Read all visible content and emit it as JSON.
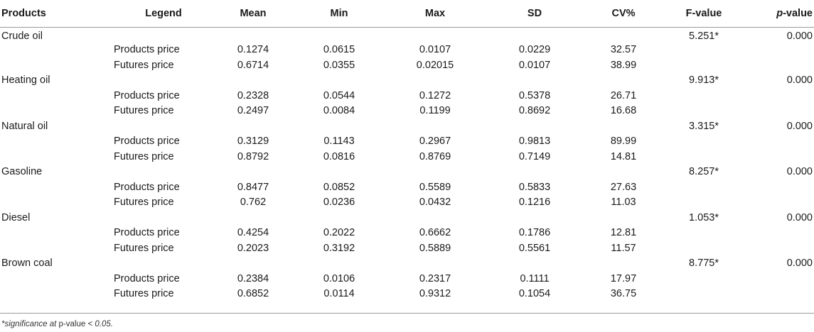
{
  "headers": {
    "products": "Products",
    "legend": "Legend",
    "mean": "Mean",
    "min": "Min",
    "max": "Max",
    "sd": "SD",
    "cv": "CV%",
    "fvalue": "F-value",
    "pvalue_p": "p",
    "pvalue_rest": "-value"
  },
  "groups": [
    {
      "product": "Crude oil",
      "f": "5.251*",
      "p": "0.000",
      "rows": [
        {
          "legend": "Products price",
          "mean": "0.1274",
          "min": "0.0615",
          "max": "0.0107",
          "sd": "0.0229",
          "cv": "32.57"
        },
        {
          "legend": "Futures price",
          "mean": "0.6714",
          "min": "0.0355",
          "max": "0.02015",
          "sd": "0.0107",
          "cv": "38.99"
        }
      ]
    },
    {
      "product": "Heating oil",
      "f": "9.913*",
      "p": "0.000",
      "rows": [
        {
          "legend": "Products price",
          "mean": "0.2328",
          "min": "0.0544",
          "max": "0.1272",
          "sd": "0.5378",
          "cv": "26.71"
        },
        {
          "legend": "Futures price",
          "mean": "0.2497",
          "min": "0.0084",
          "max": "0.1199",
          "sd": "0.8692",
          "cv": "16.68"
        }
      ]
    },
    {
      "product": "Natural oil",
      "f": "3.315*",
      "p": "0.000",
      "rows": [
        {
          "legend": "Products price",
          "mean": "0.3129",
          "min": "0.1143",
          "max": "0.2967",
          "sd": "0.9813",
          "cv": "89.99"
        },
        {
          "legend": "Futures price",
          "mean": "0.8792",
          "min": "0.0816",
          "max": "0.8769",
          "sd": "0.7149",
          "cv": "14.81"
        }
      ]
    },
    {
      "product": "Gasoline",
      "f": "8.257*",
      "p": "0.000",
      "rows": [
        {
          "legend": "Products price",
          "mean": "0.8477",
          "min": "0.0852",
          "max": "0.5589",
          "sd": "0.5833",
          "cv": "27.63"
        },
        {
          "legend": "Futures price",
          "mean": "0.762",
          "min": "0.0236",
          "max": "0.0432",
          "sd": "0.1216",
          "cv": "11.03"
        }
      ]
    },
    {
      "product": "Diesel",
      "f": "1.053*",
      "p": "0.000",
      "rows": [
        {
          "legend": "Products price",
          "mean": "0.4254",
          "min": "0.2022",
          "max": "0.6662",
          "sd": "0.1786",
          "cv": "12.81"
        },
        {
          "legend": "Futures price",
          "mean": "0.2023",
          "min": "0.3192",
          "max": "0.5889",
          "sd": "0.5561",
          "cv": "11.57"
        }
      ]
    },
    {
      "product": "Brown coal",
      "f": "8.775*",
      "p": "0.000",
      "rows": [
        {
          "legend": "Products price",
          "mean": "0.2384",
          "min": "0.0106",
          "max": "0.2317",
          "sd": "0.1111",
          "cv": "17.97"
        },
        {
          "legend": "Futures price",
          "mean": "0.6852",
          "min": "0.0114",
          "max": "0.9312",
          "sd": "0.1054",
          "cv": "36.75"
        }
      ]
    }
  ],
  "footnote": {
    "prefix": "*significance at ",
    "middle": "p-value",
    "suffix": " < 0.05."
  }
}
